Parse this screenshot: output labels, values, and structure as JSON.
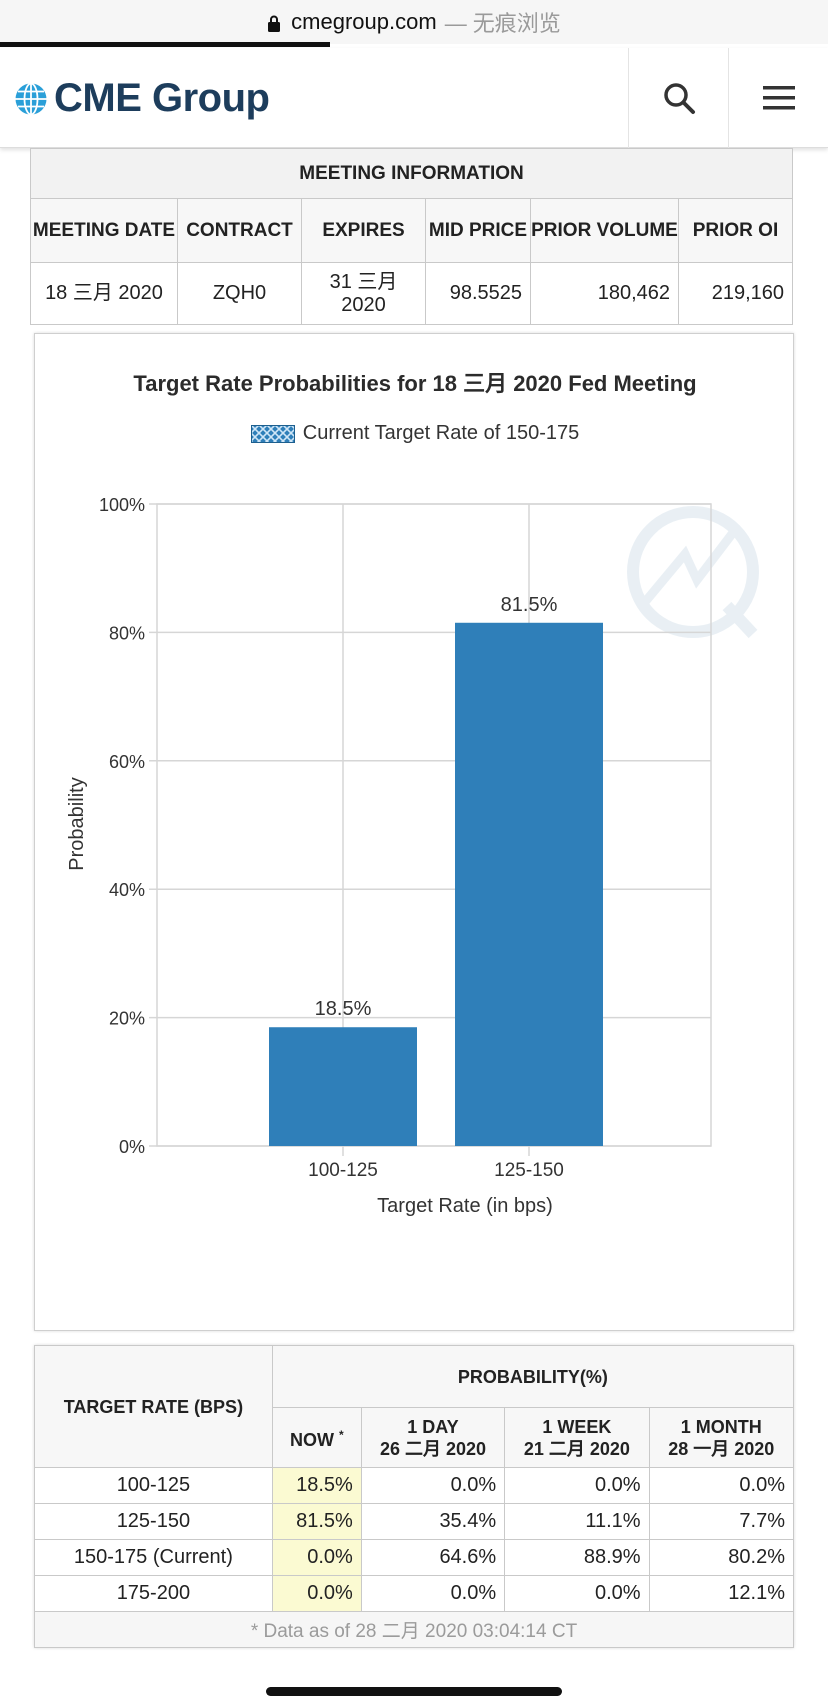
{
  "browser": {
    "domain": "cmegroup.com",
    "mode_suffix": "— 无痕浏览"
  },
  "header": {
    "logo_text": "CME Group"
  },
  "meeting_info": {
    "title": "MEETING INFORMATION",
    "columns": [
      "MEETING DATE",
      "CONTRACT",
      "EXPIRES",
      "MID PRICE",
      "PRIOR VOLUME",
      "PRIOR OI"
    ],
    "row": {
      "meeting_date": "18 三月 2020",
      "contract": "ZQH0",
      "expires": "31 三月 2020",
      "mid_price": "98.5525",
      "prior_volume": "180,462",
      "prior_oi": "219,160"
    }
  },
  "chart_data": {
    "type": "bar",
    "title": "Target Rate Probabilities for 18 三月 2020 Fed Meeting",
    "legend": {
      "label": "Current Target Rate of 150-175",
      "placement": "top-center"
    },
    "categories": [
      "100-125",
      "125-150"
    ],
    "values": [
      18.5,
      81.5
    ],
    "value_labels": [
      "18.5%",
      "81.5%"
    ],
    "xlabel": "Target Rate (in bps)",
    "ylabel": "Probability",
    "ylim": [
      0,
      100
    ],
    "y_ticks": [
      "0%",
      "20%",
      "40%",
      "60%",
      "80%",
      "100%"
    ],
    "grid": true,
    "bar_color": "#2f7fb9"
  },
  "probability_table": {
    "col_rate": "TARGET RATE (BPS)",
    "col_group": "PROBABILITY(%)",
    "col_now": "NOW",
    "col_now_mark": "*",
    "col_1day": "1 DAY",
    "col_1day_date": "26 二月 2020",
    "col_1week": "1 WEEK",
    "col_1week_date": "21 二月 2020",
    "col_1month": "1 MONTH",
    "col_1month_date": "28 一月 2020",
    "rows": [
      {
        "rate": "100-125",
        "now": "18.5%",
        "d1": "0.0%",
        "w1": "0.0%",
        "m1": "0.0%"
      },
      {
        "rate": "125-150",
        "now": "81.5%",
        "d1": "35.4%",
        "w1": "11.1%",
        "m1": "7.7%"
      },
      {
        "rate": "150-175 (Current)",
        "now": "0.0%",
        "d1": "64.6%",
        "w1": "88.9%",
        "m1": "80.2%"
      },
      {
        "rate": "175-200",
        "now": "0.0%",
        "d1": "0.0%",
        "w1": "0.0%",
        "m1": "12.1%"
      }
    ],
    "footnote": "* Data as of 28 二月 2020 03:04:14 CT"
  }
}
